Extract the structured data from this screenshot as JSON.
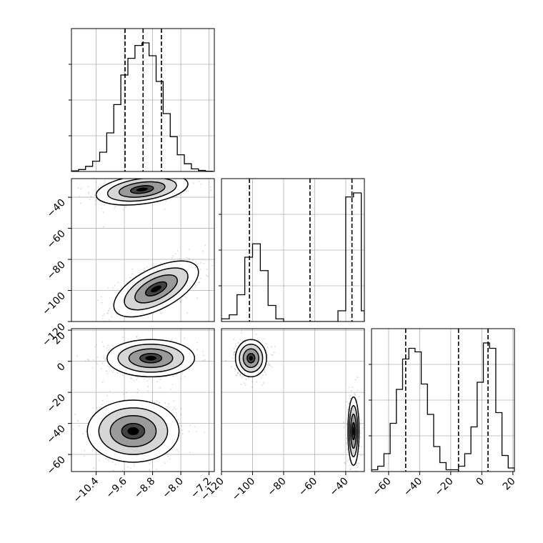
{
  "chart_data": {
    "type": "corner",
    "parameters": [
      {
        "index": 0,
        "range": [
          -11.1,
          -7.05
        ],
        "ticks": [
          -10.4,
          -9.6,
          -8.8,
          -8.0,
          -7.2
        ],
        "tick_labels": [
          "−10.4",
          "−9.6",
          "−8.8",
          "−8.0",
          "−7.2"
        ],
        "quantile_lines": [
          -9.58,
          -9.07,
          -8.55
        ]
      },
      {
        "index": 1,
        "range": [
          -120.0,
          -28.0
        ],
        "ticks": [
          -120,
          -100,
          -80,
          -60,
          -40
        ],
        "tick_labels": [
          "−120",
          "−100",
          "−80",
          "−60",
          "−40"
        ],
        "quantile_lines": [
          -102.0,
          -63.0,
          -36.0
        ]
      },
      {
        "index": 2,
        "range": [
          -71.0,
          21.0
        ],
        "ticks": [
          -60,
          -40,
          -20,
          0,
          20
        ],
        "tick_labels": [
          "−60",
          "−40",
          "−20",
          "0",
          "20"
        ],
        "quantile_lines": [
          -49.0,
          -15.0,
          4.0
        ]
      }
    ],
    "histograms": [
      {
        "param": 0,
        "bin_edges": [
          -11.1,
          -10.9,
          -10.7,
          -10.5,
          -10.3,
          -10.1,
          -9.9,
          -9.7,
          -9.5,
          -9.3,
          -9.1,
          -8.9,
          -8.7,
          -8.5,
          -8.3,
          -8.1,
          -7.9,
          -7.7,
          -7.5,
          -7.3,
          -7.1
        ],
        "counts": [
          0.005,
          0.015,
          0.04,
          0.08,
          0.15,
          0.3,
          0.52,
          0.75,
          0.88,
          0.98,
          1.0,
          0.9,
          0.7,
          0.45,
          0.27,
          0.13,
          0.06,
          0.02,
          0.008,
          0.002
        ]
      },
      {
        "param": 1,
        "bin_edges": [
          -120,
          -115,
          -110,
          -105,
          -100,
          -95,
          -90,
          -85,
          -80,
          -75,
          -70,
          -65,
          -60,
          -55,
          -50,
          -45,
          -40,
          -35,
          -30,
          -28
        ],
        "counts": [
          0.02,
          0.05,
          0.2,
          0.48,
          0.58,
          0.38,
          0.12,
          0.02,
          0.0,
          0.0,
          0.0,
          0.0,
          0.0,
          0.0,
          0.0,
          0.08,
          0.93,
          0.96,
          0.08
        ]
      },
      {
        "param": 2,
        "bin_edges": [
          -71,
          -67,
          -63,
          -59,
          -55,
          -51,
          -47,
          -43,
          -39,
          -35,
          -31,
          -27,
          -23,
          -19,
          -15,
          -11,
          -7,
          -3,
          1,
          5,
          9,
          13,
          17,
          21
        ],
        "counts": [
          0.01,
          0.03,
          0.1,
          0.27,
          0.46,
          0.63,
          0.69,
          0.67,
          0.49,
          0.32,
          0.14,
          0.05,
          0.01,
          0.01,
          0.03,
          0.1,
          0.25,
          0.5,
          0.72,
          0.69,
          0.33,
          0.09,
          0.02
        ]
      }
    ],
    "contours": [
      {
        "x_param": 0,
        "y_param": 1,
        "modes": [
          {
            "center": [
              -9.1,
              -35.0
            ],
            "sigma": [
              0.65,
              5.0
            ],
            "corr": 0.35
          },
          {
            "center": [
              -8.7,
              -99.0
            ],
            "sigma": [
              0.6,
              9.0
            ],
            "corr": 0.6
          }
        ]
      },
      {
        "x_param": 0,
        "y_param": 2,
        "modes": [
          {
            "center": [
              -8.85,
              2.0
            ],
            "sigma": [
              0.62,
              6.0
            ],
            "corr": 0.0
          },
          {
            "center": [
              -9.35,
              -45.0
            ],
            "sigma": [
              0.65,
              10.0
            ],
            "corr": 0.0
          }
        ]
      },
      {
        "x_param": 1,
        "y_param": 2,
        "modes": [
          {
            "center": [
              -101.0,
              2.0
            ],
            "sigma": [
              5.0,
              6.0
            ],
            "corr": 0.0
          },
          {
            "center": [
              -35.0,
              -45.0
            ],
            "sigma": [
              1.8,
              11.0
            ],
            "corr": 0.0
          }
        ]
      }
    ],
    "contour_levels_sigma": [
      0.5,
      1.0,
      1.5,
      2.0
    ],
    "grid": true,
    "colors": {
      "line": "#000000",
      "grid": "#b0b0b0",
      "fill_dark": "#000000",
      "fill_light": "#ffffff",
      "points": "#444444"
    }
  }
}
